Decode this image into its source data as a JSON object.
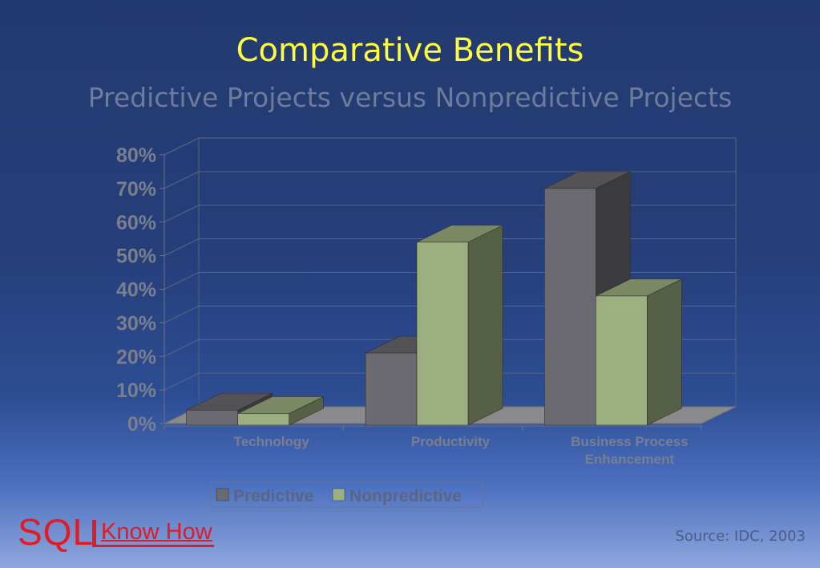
{
  "slide": {
    "title": "Comparative Benefits",
    "subtitle": "Predictive Projects versus Nonpredictive Projects",
    "logo_sql": "SQL",
    "logo_knowhow": "Know How",
    "source": "Source: IDC, 2003"
  },
  "colors": {
    "predictive": "#6b6a70",
    "nonpredictive": "#9caf80",
    "title": "#ffff3c",
    "axis_text": "#797f8e",
    "logo": "#e11b22"
  },
  "chart_data": {
    "type": "bar",
    "style": "3d-clustered-column",
    "categories": [
      "Technology",
      "Productivity",
      "Business Process Enhancement"
    ],
    "series": [
      {
        "name": "Predictive",
        "values": [
          4,
          21,
          70
        ]
      },
      {
        "name": "Nonpredictive",
        "values": [
          3,
          54,
          38
        ]
      }
    ],
    "yticks": [
      "0%",
      "10%",
      "20%",
      "30%",
      "40%",
      "50%",
      "60%",
      "70%",
      "80%"
    ],
    "ylim": [
      0,
      80
    ],
    "grid": true,
    "legend": "bottom-center"
  }
}
